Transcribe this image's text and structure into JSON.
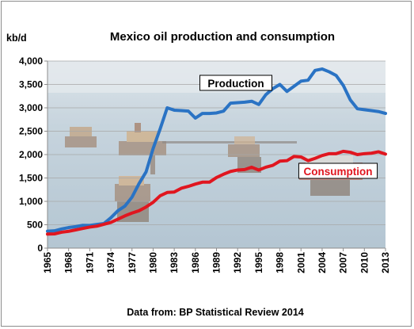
{
  "chart_data": {
    "type": "line",
    "title": "Mexico oil production and consumption",
    "ylabel": "kb/d",
    "source": "Data from: BP Statistical Review 2014",
    "ylim": [
      0,
      4000
    ],
    "xlim": [
      1965,
      2013
    ],
    "yticks": [
      "0",
      "500",
      "1,000",
      "1,500",
      "2,000",
      "2,500",
      "3,000",
      "3,500",
      "4,000"
    ],
    "ytick_values": [
      0,
      500,
      1000,
      1500,
      2000,
      2500,
      3000,
      3500,
      4000
    ],
    "xticks": [
      "1965",
      "1968",
      "1971",
      "1974",
      "1977",
      "1980",
      "1983",
      "1986",
      "1989",
      "1992",
      "1995",
      "1998",
      "2001",
      "2004",
      "2007",
      "2010",
      "2013"
    ],
    "grid": true,
    "legend": "inline labels",
    "background": "offshore oil platforms photo",
    "x": [
      1965,
      1966,
      1967,
      1968,
      1969,
      1970,
      1971,
      1972,
      1973,
      1974,
      1975,
      1976,
      1977,
      1978,
      1979,
      1980,
      1981,
      1982,
      1983,
      1984,
      1985,
      1986,
      1987,
      1988,
      1989,
      1990,
      1991,
      1992,
      1993,
      1994,
      1995,
      1996,
      1997,
      1998,
      1999,
      2000,
      2001,
      2002,
      2003,
      2004,
      2005,
      2006,
      2007,
      2008,
      2009,
      2010,
      2011,
      2012,
      2013
    ],
    "series": [
      {
        "name": "Production",
        "color": "#2a73c4",
        "values": [
          362,
          370,
          410,
          440,
          460,
          487,
          486,
          506,
          525,
          650,
          800,
          900,
          1090,
          1380,
          1630,
          2130,
          2550,
          3000,
          2950,
          2940,
          2930,
          2780,
          2880,
          2880,
          2890,
          2930,
          3100,
          3110,
          3120,
          3140,
          3070,
          3280,
          3410,
          3500,
          3350,
          3460,
          3570,
          3590,
          3800,
          3830,
          3770,
          3690,
          3480,
          3170,
          2980,
          2960,
          2940,
          2920,
          2880
        ]
      },
      {
        "name": "Consumption",
        "color": "#e0161f",
        "values": [
          300,
          305,
          340,
          360,
          390,
          420,
          450,
          470,
          510,
          550,
          620,
          690,
          750,
          800,
          880,
          980,
          1120,
          1190,
          1200,
          1280,
          1320,
          1370,
          1410,
          1410,
          1510,
          1580,
          1640,
          1670,
          1680,
          1730,
          1670,
          1730,
          1770,
          1860,
          1870,
          1960,
          1950,
          1870,
          1920,
          1980,
          2020,
          2020,
          2070,
          2050,
          2000,
          2020,
          2030,
          2060,
          2010
        ]
      }
    ]
  }
}
